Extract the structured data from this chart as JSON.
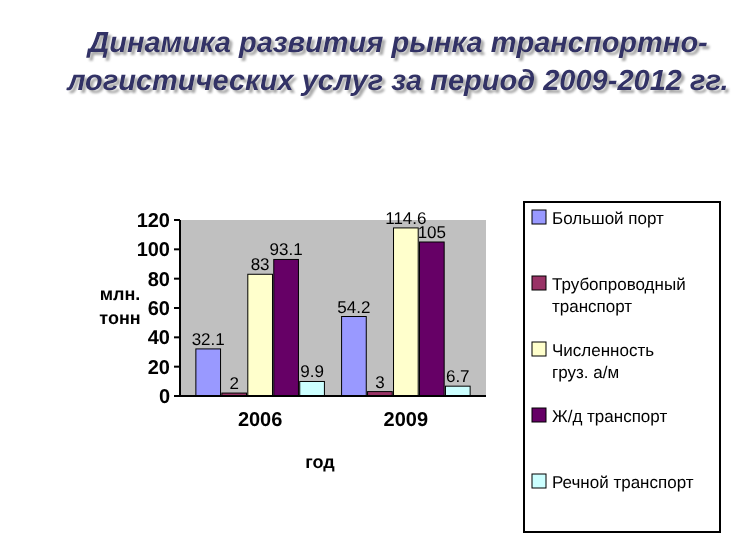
{
  "chart_data": {
    "type": "bar",
    "title": "Динамика развития рынка транспортно-\nлогистических услуг за период 2009-2012 гг.",
    "xlabel": "год",
    "ylabel": "млн.\nтонн",
    "categories": [
      "2006",
      "2009"
    ],
    "series": [
      {
        "name": "Большой порт",
        "color": "#9999ff",
        "values": [
          32.1,
          54.2
        ]
      },
      {
        "name": "Трубопроводный\nтранспорт",
        "color": "#993366",
        "values": [
          2,
          3
        ]
      },
      {
        "name": "Численность\nгруз. а/м",
        "color": "#ffffcc",
        "values": [
          83,
          114.6
        ]
      },
      {
        "name": "Ж/д транспорт",
        "color": "#660066",
        "values": [
          93.1,
          105
        ]
      },
      {
        "name": "Речной транспорт",
        "color": "#ccffff",
        "values": [
          9.9,
          6.7
        ]
      }
    ],
    "ylim": [
      0,
      120
    ],
    "yticks": [
      0,
      20,
      40,
      60,
      80,
      100,
      120
    ],
    "data_labels": true,
    "legend": "right",
    "grid": false
  }
}
